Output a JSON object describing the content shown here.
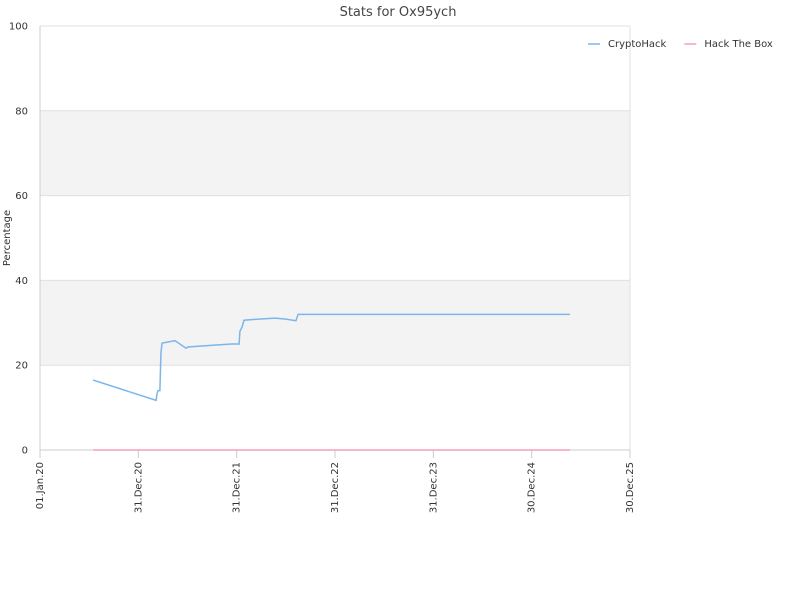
{
  "chart_data": {
    "type": "line",
    "title": "Stats for Ox95ych",
    "ylabel": "Percentage",
    "xlim": [
      "2020-01-01",
      "2025-12-30"
    ],
    "xticks": [
      {
        "value": "2020-01-01",
        "label": "01.Jan.20"
      },
      {
        "value": "2020-12-31",
        "label": "31.Dec.20"
      },
      {
        "value": "2021-12-31",
        "label": "31.Dec.21"
      },
      {
        "value": "2022-12-31",
        "label": "31.Dec.22"
      },
      {
        "value": "2023-12-31",
        "label": "31.Dec.23"
      },
      {
        "value": "2024-12-30",
        "label": "30.Dec.24"
      },
      {
        "value": "2025-12-30",
        "label": "30.Dec.25"
      }
    ],
    "ylim": [
      0,
      100
    ],
    "yticks": [
      0,
      20,
      40,
      60,
      80,
      100
    ],
    "grid": true,
    "legend": "top-right",
    "series": [
      {
        "name": "CryptoHack",
        "color": "#7cb5ec",
        "x": [
          "2020-07-16",
          "2021-03-07",
          "2021-03-11",
          "2021-03-14",
          "2021-03-21",
          "2021-03-25",
          "2021-03-29",
          "2021-05-16",
          "2021-06-26",
          "2021-07-03",
          "2021-08-17",
          "2021-10-23",
          "2021-12-14",
          "2022-01-09",
          "2022-01-12",
          "2022-01-20",
          "2022-01-27",
          "2022-03-09",
          "2022-05-22",
          "2022-06-28",
          "2022-08-08",
          "2022-08-16",
          "2025-05-21"
        ],
        "values": [
          16.5,
          11.7,
          13.5,
          14,
          14,
          23,
          25.2,
          25.8,
          24,
          24.3,
          24.5,
          24.8,
          25,
          25,
          28,
          29,
          30.6,
          30.8,
          31.1,
          30.9,
          30.5,
          32,
          32
        ]
      },
      {
        "name": "Hack The Box",
        "color": "#f7a1b5",
        "x": [
          "2020-07-16",
          "2025-05-21"
        ],
        "values": [
          0,
          0
        ]
      }
    ]
  }
}
